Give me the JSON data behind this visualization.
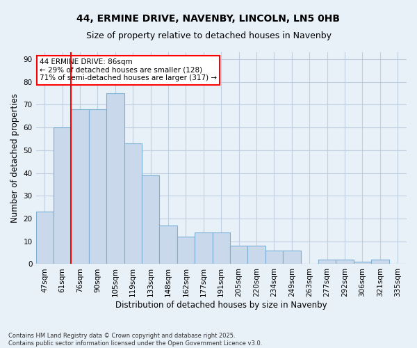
{
  "title1": "44, ERMINE DRIVE, NAVENBY, LINCOLN, LN5 0HB",
  "title2": "Size of property relative to detached houses in Navenby",
  "xlabel": "Distribution of detached houses by size in Navenby",
  "ylabel": "Number of detached properties",
  "categories": [
    "47sqm",
    "61sqm",
    "76sqm",
    "90sqm",
    "105sqm",
    "119sqm",
    "133sqm",
    "148sqm",
    "162sqm",
    "177sqm",
    "191sqm",
    "205sqm",
    "220sqm",
    "234sqm",
    "249sqm",
    "263sqm",
    "277sqm",
    "292sqm",
    "306sqm",
    "321sqm",
    "335sqm"
  ],
  "values": [
    23,
    60,
    68,
    68,
    75,
    53,
    39,
    17,
    12,
    14,
    14,
    8,
    8,
    6,
    6,
    0,
    2,
    2,
    1,
    2,
    0
  ],
  "bar_color": "#c9d9eb",
  "bar_edge_color": "#7bafd4",
  "grid_color": "#c0d0e0",
  "background_color": "#e8f0f8",
  "vline_color": "red",
  "vline_x": 1.5,
  "annotation_text": "44 ERMINE DRIVE: 86sqm\n← 29% of detached houses are smaller (128)\n71% of semi-detached houses are larger (317) →",
  "annotation_box_color": "white",
  "annotation_box_edge": "red",
  "ylim": [
    0,
    93
  ],
  "yticks": [
    0,
    10,
    20,
    30,
    40,
    50,
    60,
    70,
    80,
    90
  ],
  "footer": "Contains HM Land Registry data © Crown copyright and database right 2025.\nContains public sector information licensed under the Open Government Licence v3.0.",
  "title_fontsize": 10,
  "subtitle_fontsize": 9,
  "tick_fontsize": 7.5,
  "label_fontsize": 8.5
}
